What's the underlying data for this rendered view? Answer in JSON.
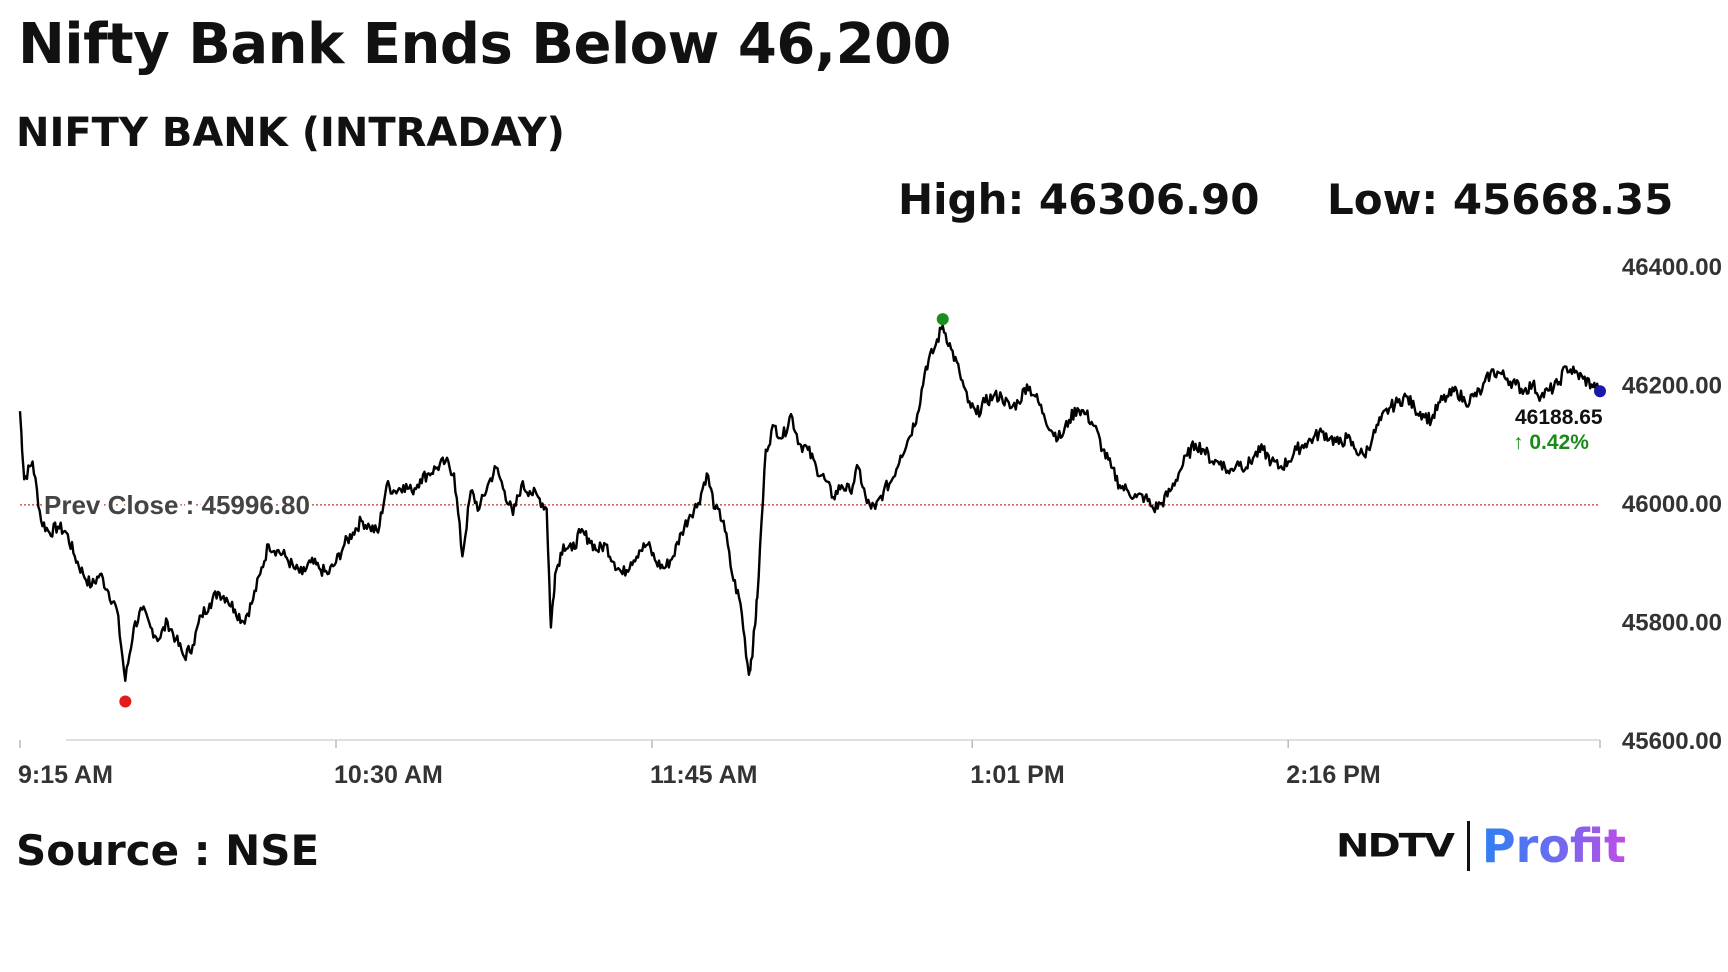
{
  "headline": "Nifty Bank Ends Below 46,200",
  "subtitle": "NIFTY BANK (INTRADAY)",
  "stats": {
    "high": "High: 46306.90",
    "low": "Low: 45668.35"
  },
  "source": "Source : NSE",
  "logo": {
    "primary": "NDTV",
    "secondary": "Profit"
  },
  "colors": {
    "line": "#000000",
    "prev_close": "#c0392b",
    "high_marker": "#1e8c1e",
    "low_marker": "#e31b1b",
    "last_marker": "#1a1aa8",
    "change_up": "#1a8a1a"
  },
  "chart_data": {
    "type": "line",
    "title": "NIFTY BANK (INTRADAY)",
    "xlabel": "",
    "ylabel": "",
    "ylim": [
      45600,
      46400
    ],
    "x_range": [
      "9:15 AM",
      "3:30 PM"
    ],
    "y_ticks": [
      46400,
      46200,
      46000,
      45800,
      45600
    ],
    "y_tick_labels": [
      "46400.00",
      "46200.00",
      "46000.00",
      "45800.00",
      "45600.00"
    ],
    "x_tick_labels": [
      "9:15 AM",
      "10:30 AM",
      "11:45 AM",
      "1:01 PM",
      "2:16 PM"
    ],
    "x_tick_minutes": [
      0,
      75,
      150,
      226,
      301
    ],
    "prev_close": 45996.8,
    "prev_close_label": "Prev Close : 45996.80",
    "high": {
      "minute": 219,
      "value": 46306.9
    },
    "low": {
      "minute": 25,
      "value": 45668.35
    },
    "last": {
      "minute": 375,
      "value": 46188.65,
      "label": "46188.65",
      "change": "↑ 0.42%"
    },
    "series": [
      {
        "points": [
          [
            0,
            46155
          ],
          [
            1,
            46040
          ],
          [
            3,
            46070
          ],
          [
            5,
            45970
          ],
          [
            7,
            45950
          ],
          [
            9,
            45960
          ],
          [
            11,
            45950
          ],
          [
            13,
            45910
          ],
          [
            15,
            45880
          ],
          [
            17,
            45860
          ],
          [
            19,
            45880
          ],
          [
            21,
            45850
          ],
          [
            23,
            45820
          ],
          [
            25,
            45700
          ],
          [
            27,
            45790
          ],
          [
            29,
            45820
          ],
          [
            31,
            45790
          ],
          [
            33,
            45770
          ],
          [
            35,
            45800
          ],
          [
            37,
            45770
          ],
          [
            39,
            45740
          ],
          [
            41,
            45760
          ],
          [
            43,
            45810
          ],
          [
            45,
            45830
          ],
          [
            47,
            45850
          ],
          [
            49,
            45840
          ],
          [
            51,
            45820
          ],
          [
            53,
            45800
          ],
          [
            55,
            45830
          ],
          [
            57,
            45880
          ],
          [
            59,
            45930
          ],
          [
            61,
            45920
          ],
          [
            63,
            45910
          ],
          [
            65,
            45890
          ],
          [
            67,
            45880
          ],
          [
            69,
            45900
          ],
          [
            71,
            45890
          ],
          [
            73,
            45880
          ],
          [
            75,
            45900
          ],
          [
            77,
            45930
          ],
          [
            79,
            45950
          ],
          [
            81,
            45970
          ],
          [
            83,
            45960
          ],
          [
            85,
            45950
          ],
          [
            87,
            46030
          ],
          [
            89,
            46020
          ],
          [
            91,
            46030
          ],
          [
            93,
            46020
          ],
          [
            95,
            46040
          ],
          [
            97,
            46050
          ],
          [
            99,
            46060
          ],
          [
            101,
            46070
          ],
          [
            103,
            46050
          ],
          [
            105,
            45910
          ],
          [
            107,
            46020
          ],
          [
            109,
            45990
          ],
          [
            111,
            46030
          ],
          [
            113,
            46060
          ],
          [
            115,
            46020
          ],
          [
            117,
            45980
          ],
          [
            119,
            46030
          ],
          [
            121,
            46020
          ],
          [
            123,
            46010
          ],
          [
            125,
            45990
          ],
          [
            126,
            45790
          ],
          [
            127,
            45880
          ],
          [
            129,
            45930
          ],
          [
            131,
            45920
          ],
          [
            133,
            45950
          ],
          [
            135,
            45940
          ],
          [
            137,
            45920
          ],
          [
            139,
            45930
          ],
          [
            141,
            45900
          ],
          [
            143,
            45880
          ],
          [
            145,
            45900
          ],
          [
            147,
            45920
          ],
          [
            149,
            45930
          ],
          [
            151,
            45900
          ],
          [
            153,
            45890
          ],
          [
            155,
            45910
          ],
          [
            157,
            45950
          ],
          [
            159,
            45980
          ],
          [
            161,
            46000
          ],
          [
            163,
            46050
          ],
          [
            165,
            45990
          ],
          [
            167,
            45970
          ],
          [
            169,
            45880
          ],
          [
            171,
            45830
          ],
          [
            173,
            45710
          ],
          [
            174,
            45760
          ],
          [
            175,
            45840
          ],
          [
            177,
            46090
          ],
          [
            179,
            46130
          ],
          [
            181,
            46110
          ],
          [
            183,
            46150
          ],
          [
            185,
            46100
          ],
          [
            187,
            46090
          ],
          [
            189,
            46060
          ],
          [
            191,
            46040
          ],
          [
            193,
            46010
          ],
          [
            195,
            46030
          ],
          [
            197,
            46020
          ],
          [
            199,
            46060
          ],
          [
            201,
            46000
          ],
          [
            203,
            45990
          ],
          [
            205,
            46020
          ],
          [
            207,
            46040
          ],
          [
            209,
            46080
          ],
          [
            211,
            46110
          ],
          [
            213,
            46150
          ],
          [
            215,
            46230
          ],
          [
            217,
            46260
          ],
          [
            219,
            46300
          ],
          [
            221,
            46260
          ],
          [
            223,
            46220
          ],
          [
            225,
            46170
          ],
          [
            227,
            46150
          ],
          [
            229,
            46170
          ],
          [
            231,
            46180
          ],
          [
            233,
            46180
          ],
          [
            235,
            46160
          ],
          [
            237,
            46170
          ],
          [
            239,
            46200
          ],
          [
            241,
            46180
          ],
          [
            243,
            46150
          ],
          [
            245,
            46120
          ],
          [
            247,
            46110
          ],
          [
            249,
            46140
          ],
          [
            251,
            46160
          ],
          [
            253,
            46150
          ],
          [
            255,
            46130
          ],
          [
            257,
            46090
          ],
          [
            259,
            46060
          ],
          [
            261,
            46030
          ],
          [
            263,
            46020
          ],
          [
            265,
            46010
          ],
          [
            267,
            46010
          ],
          [
            269,
            45990
          ],
          [
            271,
            46000
          ],
          [
            273,
            46020
          ],
          [
            275,
            46050
          ],
          [
            277,
            46080
          ],
          [
            279,
            46100
          ],
          [
            281,
            46090
          ],
          [
            283,
            46070
          ],
          [
            285,
            46070
          ],
          [
            287,
            46050
          ],
          [
            289,
            46070
          ],
          [
            291,
            46060
          ],
          [
            293,
            46080
          ],
          [
            295,
            46090
          ],
          [
            297,
            46070
          ],
          [
            299,
            46060
          ],
          [
            301,
            46070
          ],
          [
            303,
            46090
          ],
          [
            305,
            46100
          ],
          [
            307,
            46110
          ],
          [
            309,
            46120
          ],
          [
            311,
            46110
          ],
          [
            313,
            46100
          ],
          [
            315,
            46110
          ],
          [
            317,
            46090
          ],
          [
            319,
            46080
          ],
          [
            321,
            46110
          ],
          [
            323,
            46140
          ],
          [
            325,
            46160
          ],
          [
            327,
            46170
          ],
          [
            329,
            46180
          ],
          [
            331,
            46160
          ],
          [
            333,
            46150
          ],
          [
            335,
            46140
          ],
          [
            337,
            46170
          ],
          [
            339,
            46180
          ],
          [
            341,
            46190
          ],
          [
            343,
            46170
          ],
          [
            345,
            46180
          ],
          [
            347,
            46190
          ],
          [
            349,
            46220
          ],
          [
            351,
            46220
          ],
          [
            353,
            46210
          ],
          [
            355,
            46200
          ],
          [
            357,
            46190
          ],
          [
            359,
            46200
          ],
          [
            361,
            46180
          ],
          [
            363,
            46190
          ],
          [
            365,
            46200
          ],
          [
            367,
            46230
          ],
          [
            369,
            46220
          ],
          [
            371,
            46210
          ],
          [
            373,
            46200
          ],
          [
            375,
            46188.65
          ]
        ]
      }
    ]
  }
}
